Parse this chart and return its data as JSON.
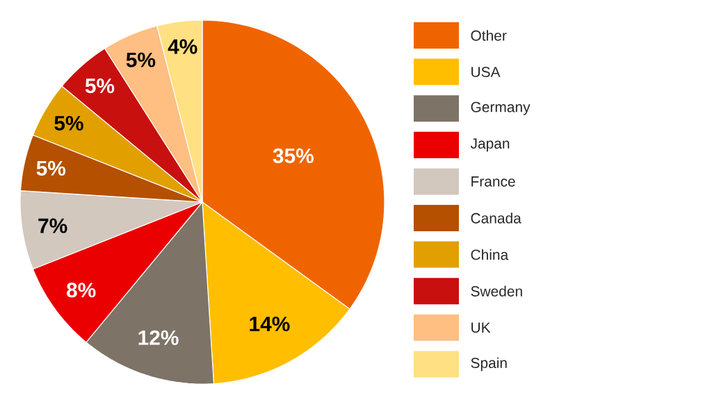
{
  "chart_data": {
    "type": "pie",
    "categories": [
      "Other",
      "USA",
      "Germany",
      "Japan",
      "France",
      "Canada",
      "China",
      "Sweden",
      "UK",
      "Spain"
    ],
    "values": [
      35,
      14,
      12,
      8,
      7,
      5,
      5,
      5,
      5,
      4
    ],
    "value_labels": [
      "35%",
      "14%",
      "12%",
      "8%",
      "7%",
      "5%",
      "5%",
      "5%",
      "5%",
      "4%"
    ],
    "colors": [
      "#f06400",
      "#ffbe00",
      "#7d7366",
      "#eb0000",
      "#d2c8bd",
      "#b45000",
      "#e1a000",
      "#c8100f",
      "#ffbe82",
      "#ffe082"
    ],
    "legend": "right"
  }
}
